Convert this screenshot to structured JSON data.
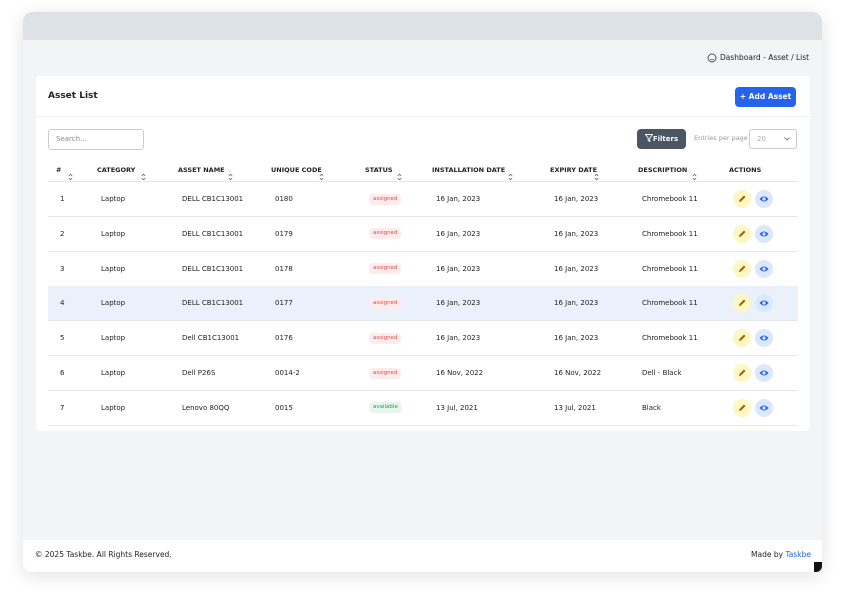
{
  "breadcrumb": {
    "home": "Dashboard",
    "separator": "-",
    "current": "Asset / List"
  },
  "card": {
    "title": "Asset List",
    "add_button": "+ Add Asset"
  },
  "toolbar": {
    "search_placeholder": "Search...",
    "filters_button": "Filters",
    "entries_label": "Entries per page",
    "entries_value": "20"
  },
  "table": {
    "columns": [
      "#",
      "CATEGORY",
      "ASSET NAME",
      "UNIQUE CODE",
      "STATUS",
      "INSTALLATION DATE",
      "EXPIRY DATE",
      "DESCRIPTION",
      "ACTIONS"
    ],
    "rows": [
      [
        "1",
        "Laptop",
        "DELL CB1C13001",
        "0180",
        "assigned",
        "16 Jan, 2023",
        "16 Jan, 2023",
        "Chromebook 11"
      ],
      [
        "2",
        "Laptop",
        "DELL CB1C13001",
        "0179",
        "assigned",
        "16 Jan, 2023",
        "16 Jan, 2023",
        "Chromebook 11"
      ],
      [
        "3",
        "Laptop",
        "DELL CB1C13001",
        "0178",
        "assigned",
        "16 Jan, 2023",
        "16 Jan, 2023",
        "Chromebook 11"
      ],
      [
        "4",
        "Laptop",
        "DELL CB1C13001",
        "0177",
        "assigned",
        "16 Jan, 2023",
        "16 Jan, 2023",
        "Chromebook 11"
      ],
      [
        "5",
        "Laptop",
        "Dell CB1C13001",
        "0176",
        "assigned",
        "16 Jan, 2023",
        "16 Jan, 2023",
        "Chromebook 11"
      ],
      [
        "6",
        "Laptop",
        "Dell P26S",
        "0014-2",
        "assigned",
        "16 Nov, 2022",
        "16 Nov, 2022",
        "Dell - Black"
      ],
      [
        "7",
        "Laptop",
        "Lenovo 80QQ",
        "0015",
        "available",
        "13 Jul, 2021",
        "13 Jul, 2021",
        "Black"
      ]
    ],
    "highlighted_row": 3,
    "badge_colors": {
      "assigned": {
        "text": "#e5484d",
        "bg": "#fdecec"
      },
      "available": {
        "text": "#1f9d55",
        "bg": "#e6f6ec"
      }
    }
  },
  "footer": {
    "copyright": "© 2025 Taskbe. All Rights Reserved.",
    "made_by": "Made by",
    "brand": "Taskbe"
  }
}
